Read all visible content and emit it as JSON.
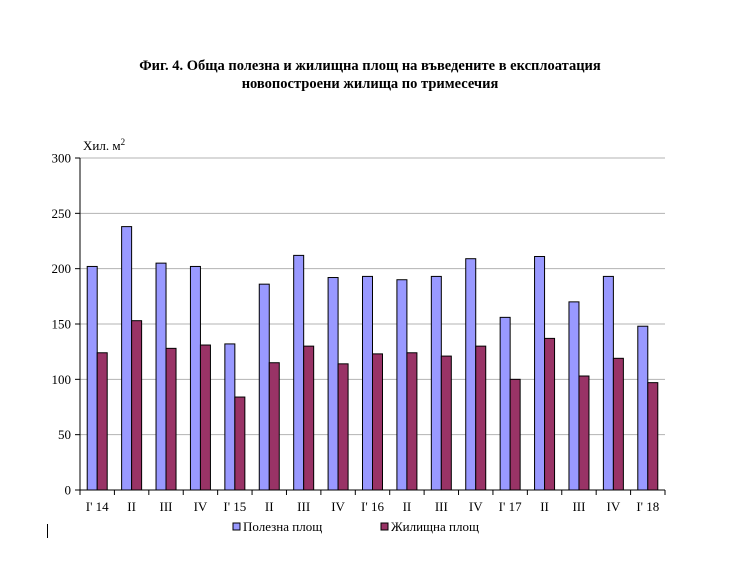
{
  "chart_data": {
    "type": "bar",
    "title": [
      "Фиг. 4. Обща полезна и жилищна площ на въведените в експлоатация",
      "новопостроени жилища по тримесечия"
    ],
    "ylabel": "Хил. м",
    "ylabel_superscript": "2",
    "ylim": [
      0,
      300
    ],
    "yticks": [
      0,
      50,
      100,
      150,
      200,
      250,
      300
    ],
    "grid": true,
    "legend_position": "bottom",
    "categories": [
      "I' 14",
      "II",
      "III",
      "IV",
      "I' 15",
      "II",
      "III",
      "IV",
      "I' 16",
      "II",
      "III",
      "IV",
      "I' 17",
      "II",
      "III",
      "IV",
      "I' 18"
    ],
    "series": [
      {
        "name": "Полезна площ",
        "color": "#9999ff",
        "values": [
          202,
          238,
          205,
          202,
          132,
          186,
          212,
          192,
          193,
          190,
          193,
          209,
          156,
          211,
          170,
          193,
          148
        ]
      },
      {
        "name": "Жилищна площ",
        "color": "#993366",
        "values": [
          124,
          153,
          128,
          131,
          84,
          115,
          130,
          114,
          123,
          124,
          121,
          130,
          100,
          137,
          103,
          119,
          97
        ]
      }
    ]
  }
}
